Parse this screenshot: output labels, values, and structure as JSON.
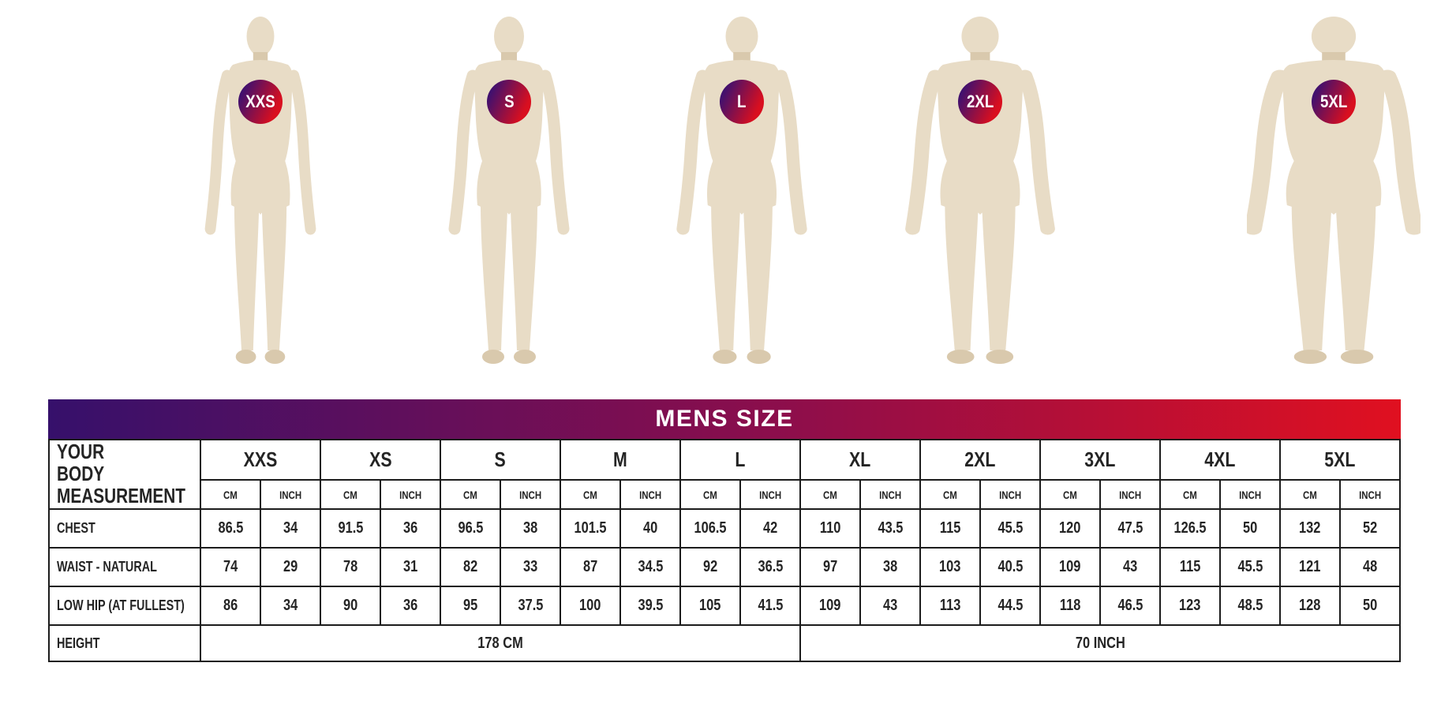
{
  "title": "MENS SIZE",
  "figures": [
    {
      "label": "XXS"
    },
    {
      "label": "S"
    },
    {
      "label": "L"
    },
    {
      "label": "2XL"
    },
    {
      "label": "5XL"
    }
  ],
  "chart_data": {
    "type": "table",
    "title": "MENS SIZE",
    "corner_label": "YOUR BODY MEASUREMENT",
    "sizes": [
      "XXS",
      "XS",
      "S",
      "M",
      "L",
      "XL",
      "2XL",
      "3XL",
      "4XL",
      "5XL"
    ],
    "units": [
      "CM",
      "INCH"
    ],
    "rows": [
      {
        "label": "CHEST",
        "values": [
          "86.5",
          "34",
          "91.5",
          "36",
          "96.5",
          "38",
          "101.5",
          "40",
          "106.5",
          "42",
          "110",
          "43.5",
          "115",
          "45.5",
          "120",
          "47.5",
          "126.5",
          "50",
          "132",
          "52"
        ]
      },
      {
        "label": "WAIST - NATURAL",
        "values": [
          "74",
          "29",
          "78",
          "31",
          "82",
          "33",
          "87",
          "34.5",
          "92",
          "36.5",
          "97",
          "38",
          "103",
          "40.5",
          "109",
          "43",
          "115",
          "45.5",
          "121",
          "48"
        ]
      },
      {
        "label": "LOW HIP (AT FULLEST)",
        "values": [
          "86",
          "34",
          "90",
          "36",
          "95",
          "37.5",
          "100",
          "39.5",
          "105",
          "41.5",
          "109",
          "43",
          "113",
          "44.5",
          "118",
          "46.5",
          "123",
          "48.5",
          "128",
          "50"
        ]
      }
    ],
    "height_row": {
      "label": "HEIGHT",
      "cm": "178 CM",
      "inch": "70 INCH"
    }
  },
  "colors": {
    "gradient_start": "#36106b",
    "gradient_mid": "#8e0e4b",
    "gradient_end": "#e01020",
    "badge_start": "#41106e",
    "badge_end": "#d90f1f",
    "mannequin": "#e8dcc6",
    "mannequin_shade": "#d9c9ad",
    "border": "#1c1c1c",
    "text": "#242424"
  }
}
